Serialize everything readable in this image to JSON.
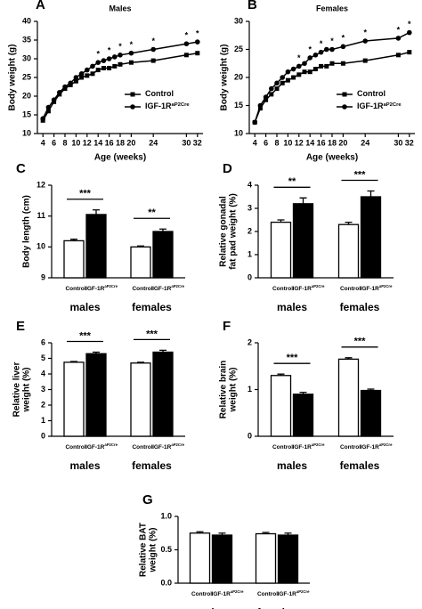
{
  "chart_data": [
    {
      "type": "line",
      "panel": "A",
      "title": "Males",
      "ylabel": [
        "Body weight (g)"
      ],
      "xlabel": "Age (weeks)",
      "x": [
        4,
        5,
        6,
        7,
        8,
        9,
        10,
        11,
        12,
        13,
        14,
        15,
        16,
        17,
        18,
        20,
        24,
        30,
        32
      ],
      "xlim": [
        3,
        33
      ],
      "xticks": [
        4,
        6,
        8,
        10,
        12,
        14,
        16,
        18,
        20,
        24,
        30,
        32
      ],
      "ylim": [
        10,
        40
      ],
      "yticks": [
        10,
        15,
        20,
        25,
        30,
        35,
        40
      ],
      "legend": "lower right",
      "series": [
        {
          "name": "Control",
          "marker": "square",
          "color": "#000000",
          "values": [
            13.5,
            16,
            18.5,
            20.5,
            22,
            23,
            24,
            25,
            25.5,
            26,
            27,
            27.5,
            27.5,
            28,
            28.5,
            29,
            29.5,
            31,
            31.5
          ]
        },
        {
          "name": "IGF-1R",
          "name_superscript": "aP2Cre",
          "marker": "circle",
          "color": "#000000",
          "values": [
            14,
            17,
            19,
            21,
            22.5,
            23.5,
            25,
            26,
            27,
            28,
            29,
            29.5,
            30,
            30.5,
            31,
            31.5,
            32.5,
            34,
            34.5
          ]
        }
      ],
      "significance_x": [
        14,
        16,
        18,
        20,
        24,
        30,
        32
      ],
      "significance_label": "*"
    },
    {
      "type": "line",
      "panel": "B",
      "title": "Females",
      "ylabel": [
        "Body weight (g)"
      ],
      "xlabel": "Age (weeks)",
      "x": [
        4,
        5,
        6,
        7,
        8,
        9,
        10,
        11,
        12,
        13,
        14,
        15,
        16,
        17,
        18,
        20,
        24,
        30,
        32
      ],
      "xlim": [
        3,
        33
      ],
      "xticks": [
        4,
        6,
        8,
        10,
        12,
        14,
        16,
        18,
        20,
        24,
        30,
        32
      ],
      "ylim": [
        10,
        30
      ],
      "yticks": [
        10,
        15,
        20,
        25,
        30
      ],
      "legend": "lower right",
      "series": [
        {
          "name": "Control",
          "marker": "square",
          "color": "#000000",
          "values": [
            12,
            14.5,
            16,
            17,
            18,
            19,
            19.5,
            20,
            20.5,
            21,
            21,
            21.5,
            22,
            22,
            22.5,
            22.5,
            23,
            24,
            24.5
          ]
        },
        {
          "name": "IGF-1R",
          "name_superscript": "aP2Cre",
          "marker": "circle",
          "color": "#000000",
          "values": [
            12,
            15,
            16.5,
            18,
            19,
            20,
            21,
            21.5,
            22,
            22.5,
            23.5,
            24,
            24.5,
            25,
            25,
            25.5,
            26.5,
            27,
            28
          ]
        }
      ],
      "significance_x": [
        12,
        14,
        16,
        18,
        20,
        24,
        30,
        32
      ],
      "significance_label": "*"
    },
    {
      "type": "bar",
      "panel": "C",
      "ylabel": [
        "Body length (cm)"
      ],
      "categories": [
        "males",
        "females"
      ],
      "ylim": [
        9,
        12
      ],
      "yticks": [
        9,
        10,
        11,
        12
      ],
      "series": [
        {
          "name": "Control",
          "color": "#ffffff",
          "values": [
            10.2,
            10.0
          ],
          "errors": [
            0.05,
            0.03
          ]
        },
        {
          "name": "IGF-1R",
          "name_superscript": "aP2Cre",
          "color": "#000000",
          "values": [
            11.05,
            10.5
          ],
          "errors": [
            0.15,
            0.08
          ]
        }
      ],
      "significance": [
        "***",
        "**"
      ]
    },
    {
      "type": "bar",
      "panel": "D",
      "ylabel": [
        "Relative gonadal",
        "fat pad weight (%)"
      ],
      "categories": [
        "males",
        "females"
      ],
      "ylim": [
        0,
        4
      ],
      "yticks": [
        0,
        1,
        2,
        3,
        4
      ],
      "series": [
        {
          "name": "Control",
          "color": "#ffffff",
          "values": [
            2.4,
            2.3
          ],
          "errors": [
            0.1,
            0.1
          ]
        },
        {
          "name": "IGF-1R",
          "name_superscript": "aP2Cre",
          "color": "#000000",
          "values": [
            3.2,
            3.5
          ],
          "errors": [
            0.25,
            0.25
          ]
        }
      ],
      "significance": [
        "**",
        "***"
      ]
    },
    {
      "type": "bar",
      "panel": "E",
      "ylabel": [
        "Relative liver",
        "weight (%)"
      ],
      "categories": [
        "males",
        "females"
      ],
      "ylim": [
        0,
        6
      ],
      "yticks": [
        0,
        1,
        2,
        3,
        4,
        5,
        6
      ],
      "series": [
        {
          "name": "Control",
          "color": "#ffffff",
          "values": [
            4.75,
            4.7
          ],
          "errors": [
            0.05,
            0.05
          ]
        },
        {
          "name": "IGF-1R",
          "name_superscript": "aP2Cre",
          "color": "#000000",
          "values": [
            5.3,
            5.4
          ],
          "errors": [
            0.1,
            0.12
          ]
        }
      ],
      "significance": [
        "***",
        "***"
      ]
    },
    {
      "type": "bar",
      "panel": "F",
      "ylabel": [
        "Relative brain",
        "weight (%)"
      ],
      "categories": [
        "males",
        "females"
      ],
      "ylim": [
        0,
        2
      ],
      "yticks": [
        0,
        1,
        2
      ],
      "series": [
        {
          "name": "Control",
          "color": "#ffffff",
          "values": [
            1.3,
            1.65
          ],
          "errors": [
            0.03,
            0.03
          ]
        },
        {
          "name": "IGF-1R",
          "name_superscript": "aP2Cre",
          "color": "#000000",
          "values": [
            0.9,
            0.98
          ],
          "errors": [
            0.04,
            0.03
          ]
        }
      ],
      "significance": [
        "***",
        "***"
      ]
    },
    {
      "type": "bar",
      "panel": "G",
      "ylabel": [
        "Relative BAT",
        "weight (%)"
      ],
      "categories": [
        "males",
        "females"
      ],
      "ylim": [
        0,
        1
      ],
      "yticks": [
        {
          "value": 0,
          "label": "0.0"
        },
        {
          "value": 0.5,
          "label": "0.5"
        },
        {
          "value": 1,
          "label": "1.0"
        }
      ],
      "series": [
        {
          "name": "Control",
          "color": "#ffffff",
          "values": [
            0.75,
            0.74
          ],
          "errors": [
            0.02,
            0.02
          ]
        },
        {
          "name": "IGF-1R",
          "name_superscript": "aP2Cre",
          "color": "#000000",
          "values": [
            0.72,
            0.72
          ],
          "errors": [
            0.03,
            0.03
          ]
        }
      ]
    }
  ]
}
